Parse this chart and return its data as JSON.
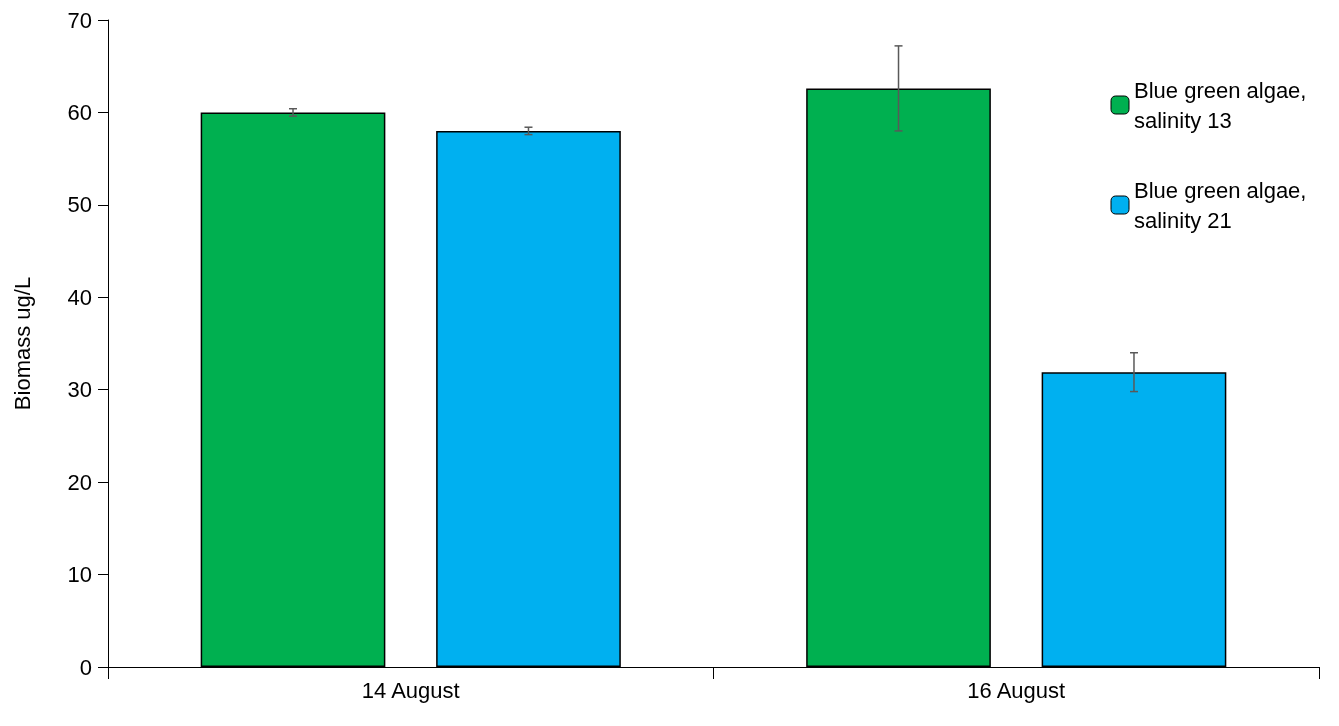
{
  "chart_data": {
    "type": "bar",
    "ylabel": "Biomass ug/L",
    "categories": [
      "14 August",
      "16 August"
    ],
    "series": [
      {
        "name": "Blue green algae, salinity 13",
        "color": "#00b050",
        "values": [
          60,
          62.6
        ],
        "errors": [
          0.4,
          4.6
        ]
      },
      {
        "name": "Blue green algae, salinity 21",
        "color": "#00b0f0",
        "values": [
          58,
          31.9
        ],
        "errors": [
          0.4,
          2.1
        ]
      }
    ],
    "ylim": [
      0,
      70
    ],
    "yticks": [
      0,
      10,
      20,
      30,
      40,
      50,
      60,
      70
    ],
    "grid": false,
    "legend": "top right"
  }
}
